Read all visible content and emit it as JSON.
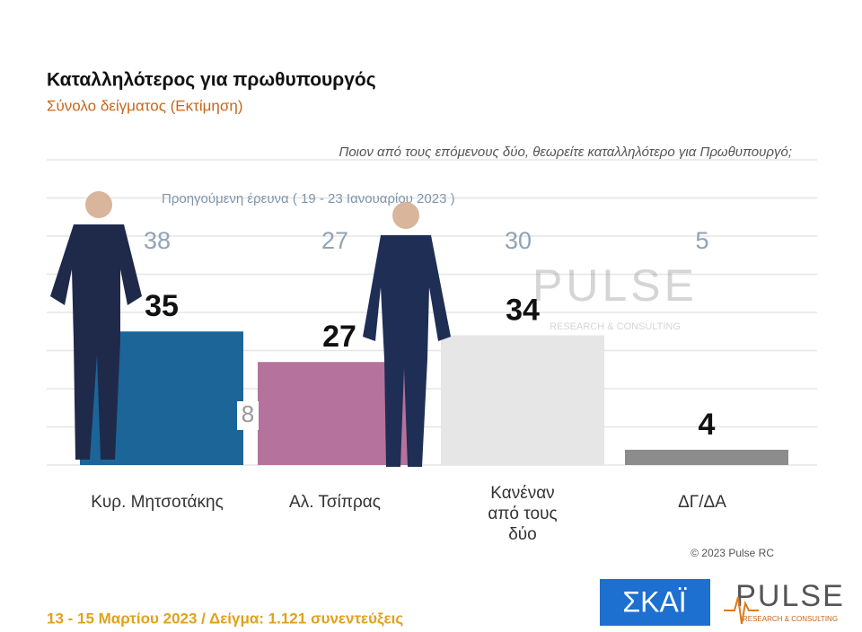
{
  "chart_data": {
    "type": "bar",
    "title": "Καταλληλότερος για πρωθυπουργός",
    "subtitle": "Σύνολο δείγματος   (Εκτίμηση)",
    "question": "Ποιον από τους επόμενους δύο, θεωρείτε καταλληλότερο για Πρωθυπουργό;",
    "previous_label": "Προηγούμενη έρευνα  ( 19 - 23 Ιανουαρίου  2023 )",
    "categories": [
      "Κυρ. Μητσοτάκης",
      "Αλ. Τσίπρας",
      "Κανέναν από τους δύο",
      "ΔΓ/ΔΑ"
    ],
    "values": [
      35,
      27,
      34,
      4
    ],
    "colors": [
      "#1c6598",
      "#b5729c",
      "#e6e6e6",
      "#8c8c8c"
    ],
    "previous_values": [
      38,
      27,
      30,
      5
    ],
    "gap_annotation": "8",
    "ylim": [
      0,
      80
    ],
    "yticks": [
      0,
      10,
      20,
      30,
      40,
      50,
      60,
      70,
      80
    ],
    "grid": true,
    "copyright": "© 2023 Pulse RC",
    "footer": "13 - 15  Μαρτίου  2023  /  Δείγμα:  1.121 συνεντεύξεις",
    "logo_skai": "ΣΚΑΪ",
    "logo_pulse": "PULSE",
    "logo_pulse_sub": "RESEARCH & CONSULTING"
  }
}
